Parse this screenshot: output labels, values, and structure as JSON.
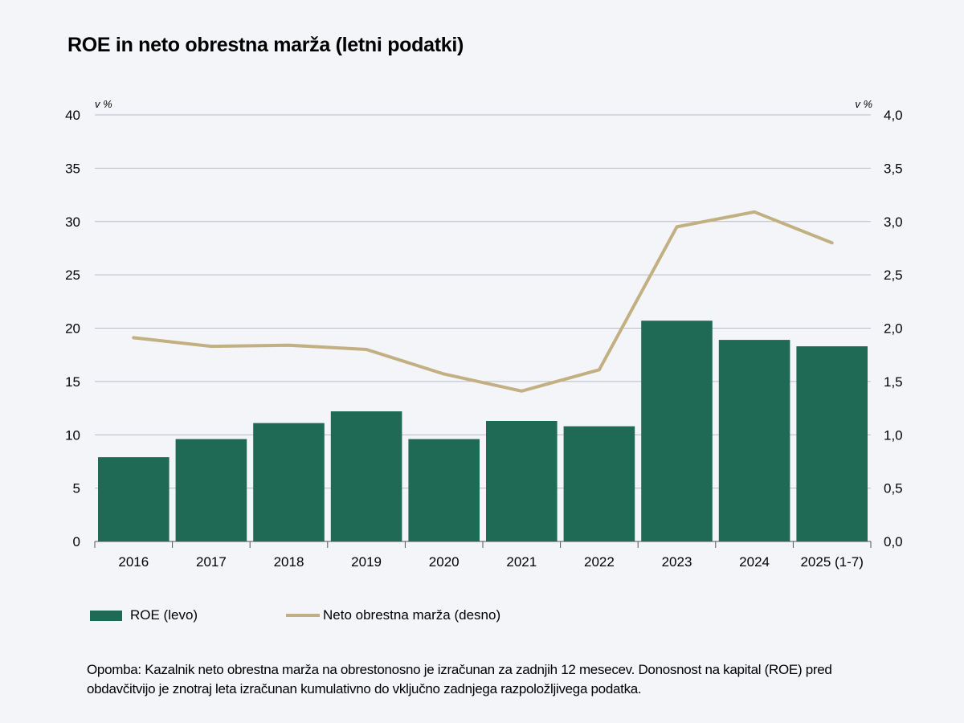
{
  "title": "ROE in neto obrestna marža (letni podatki)",
  "chart_data": {
    "type": "bar",
    "categories": [
      "2016",
      "2017",
      "2018",
      "2019",
      "2020",
      "2021",
      "2022",
      "2023",
      "2024",
      "2025 (1-7)"
    ],
    "series": [
      {
        "name": "ROE (levo)",
        "type": "bar",
        "axis": "left",
        "color": "#1f6a54",
        "values": [
          7.9,
          9.6,
          11.1,
          12.2,
          9.6,
          11.3,
          10.8,
          20.7,
          18.9,
          18.3
        ]
      },
      {
        "name": "Neto obrestna marža (desno)",
        "type": "line",
        "axis": "right",
        "color": "#c2af82",
        "values": [
          1.91,
          1.83,
          1.84,
          1.8,
          1.57,
          1.41,
          1.61,
          2.95,
          3.09,
          2.8
        ]
      }
    ],
    "y_left": {
      "min": 0,
      "max": 40,
      "ticks": [
        "0",
        "5",
        "10",
        "15",
        "20",
        "25",
        "30",
        "35",
        "40"
      ],
      "unit": "v %"
    },
    "y_right": {
      "min": 0,
      "max": 4,
      "ticks": [
        "0,0",
        "0,5",
        "1,0",
        "1,5",
        "2,0",
        "2,5",
        "3,0",
        "3,5",
        "4,0"
      ],
      "unit": "v %"
    },
    "grid": true,
    "legend_position": "bottom-left"
  },
  "legend": {
    "roe": "ROE (levo)",
    "nim": "Neto obrestna marža (desno)"
  },
  "note": "Opomba: Kazalnik neto obrestna marža na obrestonosno je izračunan za zadnjih 12 mesecev. Donosnost na kapital (ROE) pred obdavčitvijo je znotraj leta izračunan kumulativno do vključno zadnjega razpoložljivega podatka.",
  "colors": {
    "bar": "#1f6a54",
    "line": "#c2af82",
    "grid": "#b9bcc2",
    "background": "#f3f5f9"
  }
}
